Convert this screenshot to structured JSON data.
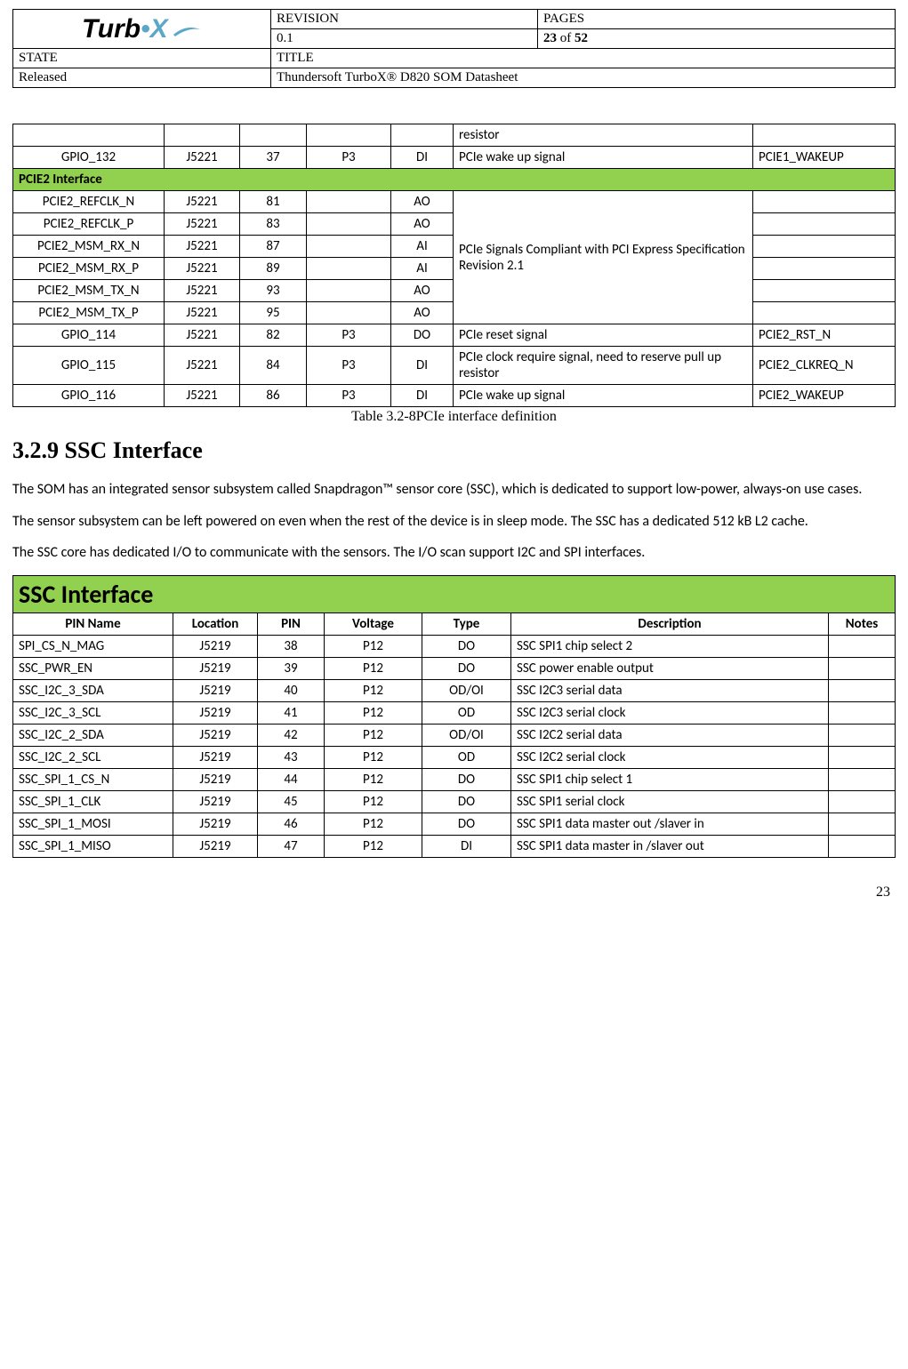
{
  "header": {
    "revision_label": "REVISION",
    "revision_value": "0.1",
    "pages_label": "PAGES",
    "pages_value_cur": "23",
    "pages_value_of": " of ",
    "pages_value_tot": "52",
    "state_label": "STATE",
    "state_value": "Released",
    "title_label": "TITLE",
    "title_value": "Thundersoft TurboX® D820 SOM Datasheet",
    "logo_text_a": "Turb",
    "logo_text_b": "•X"
  },
  "colors": {
    "section_green": "#92d050",
    "border": "#000000",
    "logo_accent": "#5aa7c7",
    "background": "#ffffff",
    "text": "#000000"
  },
  "pcie_table": {
    "row_resistor": {
      "desc": "resistor"
    },
    "row_gpio132": {
      "pin_name": "GPIO_132",
      "loc": "J5221",
      "pin": "37",
      "volt": "P3",
      "type": "DI",
      "desc": "PCIe wake up signal",
      "notes": "PCIE1_WAKEUP"
    },
    "section": "PCIE2 Interface",
    "merged_desc": "PCIe Signals Compliant with PCI Express Specification Revision 2.1",
    "rows": [
      {
        "pin_name": "PCIE2_REFCLK_N",
        "loc": "J5221",
        "pin": "81",
        "volt": "",
        "type": "AO",
        "notes": ""
      },
      {
        "pin_name": "PCIE2_REFCLK_P",
        "loc": "J5221",
        "pin": "83",
        "volt": "",
        "type": "AO",
        "notes": ""
      },
      {
        "pin_name": "PCIE2_MSM_RX_N",
        "loc": "J5221",
        "pin": "87",
        "volt": "",
        "type": "AI",
        "notes": ""
      },
      {
        "pin_name": "PCIE2_MSM_RX_P",
        "loc": "J5221",
        "pin": "89",
        "volt": "",
        "type": "AI",
        "notes": ""
      },
      {
        "pin_name": "PCIE2_MSM_TX_N",
        "loc": "J5221",
        "pin": "93",
        "volt": "",
        "type": "AO",
        "notes": ""
      },
      {
        "pin_name": "PCIE2_MSM_TX_P",
        "loc": "J5221",
        "pin": "95",
        "volt": "",
        "type": "AO",
        "notes": ""
      }
    ],
    "row_gpio114": {
      "pin_name": "GPIO_114",
      "loc": "J5221",
      "pin": "82",
      "volt": "P3",
      "type": "DO",
      "desc": "PCIe reset signal",
      "notes": "PCIE2_RST_N"
    },
    "row_gpio115": {
      "pin_name": "GPIO_115",
      "loc": "J5221",
      "pin": "84",
      "volt": "P3",
      "type": "DI",
      "desc": "PCIe clock require signal, need to reserve pull up resistor",
      "notes": "PCIE2_CLKREQ_N"
    },
    "row_gpio116": {
      "pin_name": "GPIO_116",
      "loc": "J5221",
      "pin": "86",
      "volt": "P3",
      "type": "DI",
      "desc": "PCIe wake up signal",
      "notes": "PCIE2_WAKEUP"
    }
  },
  "caption_pcie": "Table 3.2-8PCIe interface definition",
  "sec_title": "3.2.9 SSC Interface",
  "para1": "The SOM has an integrated sensor subsystem called Snapdragon™ sensor core (SSC), which is dedicated to support low-power, always-on use cases.",
  "para2": "The sensor subsystem can be left powered on even when the rest of the device is in sleep mode. The SSC has a dedicated 512 kB L2 cache.",
  "para3": "The SSC core has dedicated I/O to communicate with the sensors. The I/O scan support I2C and SPI interfaces.",
  "ssc_table": {
    "title": "SSC Interface",
    "headers": {
      "c1": "PIN Name",
      "c2": "Location",
      "c3": "PIN",
      "c4": "Voltage",
      "c5": "Type",
      "c6": "Description",
      "c7": "Notes"
    },
    "rows": [
      {
        "c1": "SPI_CS_N_MAG",
        "c2": "J5219",
        "c3": "38",
        "c4": "P12",
        "c5": "DO",
        "c6": "SSC SPI1 chip select 2",
        "c7": ""
      },
      {
        "c1": "SSC_PWR_EN",
        "c2": "J5219",
        "c3": "39",
        "c4": "P12",
        "c5": "DO",
        "c6": "SSC power enable output",
        "c7": ""
      },
      {
        "c1": "SSC_I2C_3_SDA",
        "c2": "J5219",
        "c3": "40",
        "c4": "P12",
        "c5": "OD/OI",
        "c6": "SSC I2C3 serial data",
        "c7": ""
      },
      {
        "c1": "SSC_I2C_3_SCL",
        "c2": "J5219",
        "c3": "41",
        "c4": "P12",
        "c5": "OD",
        "c6": "SSC I2C3 serial clock",
        "c7": ""
      },
      {
        "c1": "SSC_I2C_2_SDA",
        "c2": "J5219",
        "c3": "42",
        "c4": "P12",
        "c5": "OD/OI",
        "c6": "SSC I2C2 serial data",
        "c7": ""
      },
      {
        "c1": "SSC_I2C_2_SCL",
        "c2": "J5219",
        "c3": "43",
        "c4": "P12",
        "c5": "OD",
        "c6": "SSC I2C2 serial clock",
        "c7": ""
      },
      {
        "c1": "SSC_SPI_1_CS_N",
        "c2": "J5219",
        "c3": "44",
        "c4": "P12",
        "c5": "DO",
        "c6": "SSC SPI1 chip select 1",
        "c7": ""
      },
      {
        "c1": "SSC_SPI_1_CLK",
        "c2": "J5219",
        "c3": "45",
        "c4": "P12",
        "c5": "DO",
        "c6": "SSC SPI1 serial clock",
        "c7": ""
      },
      {
        "c1": "SSC_SPI_1_MOSI",
        "c2": "J5219",
        "c3": "46",
        "c4": "P12",
        "c5": "DO",
        "c6": "SSC SPI1 data master out /slaver in",
        "c7": ""
      },
      {
        "c1": "SSC_SPI_1_MISO",
        "c2": "J5219",
        "c3": "47",
        "c4": "P12",
        "c5": "DI",
        "c6": "SSC SPI1 data master in /slaver out",
        "c7": ""
      }
    ]
  },
  "page_number": "23"
}
